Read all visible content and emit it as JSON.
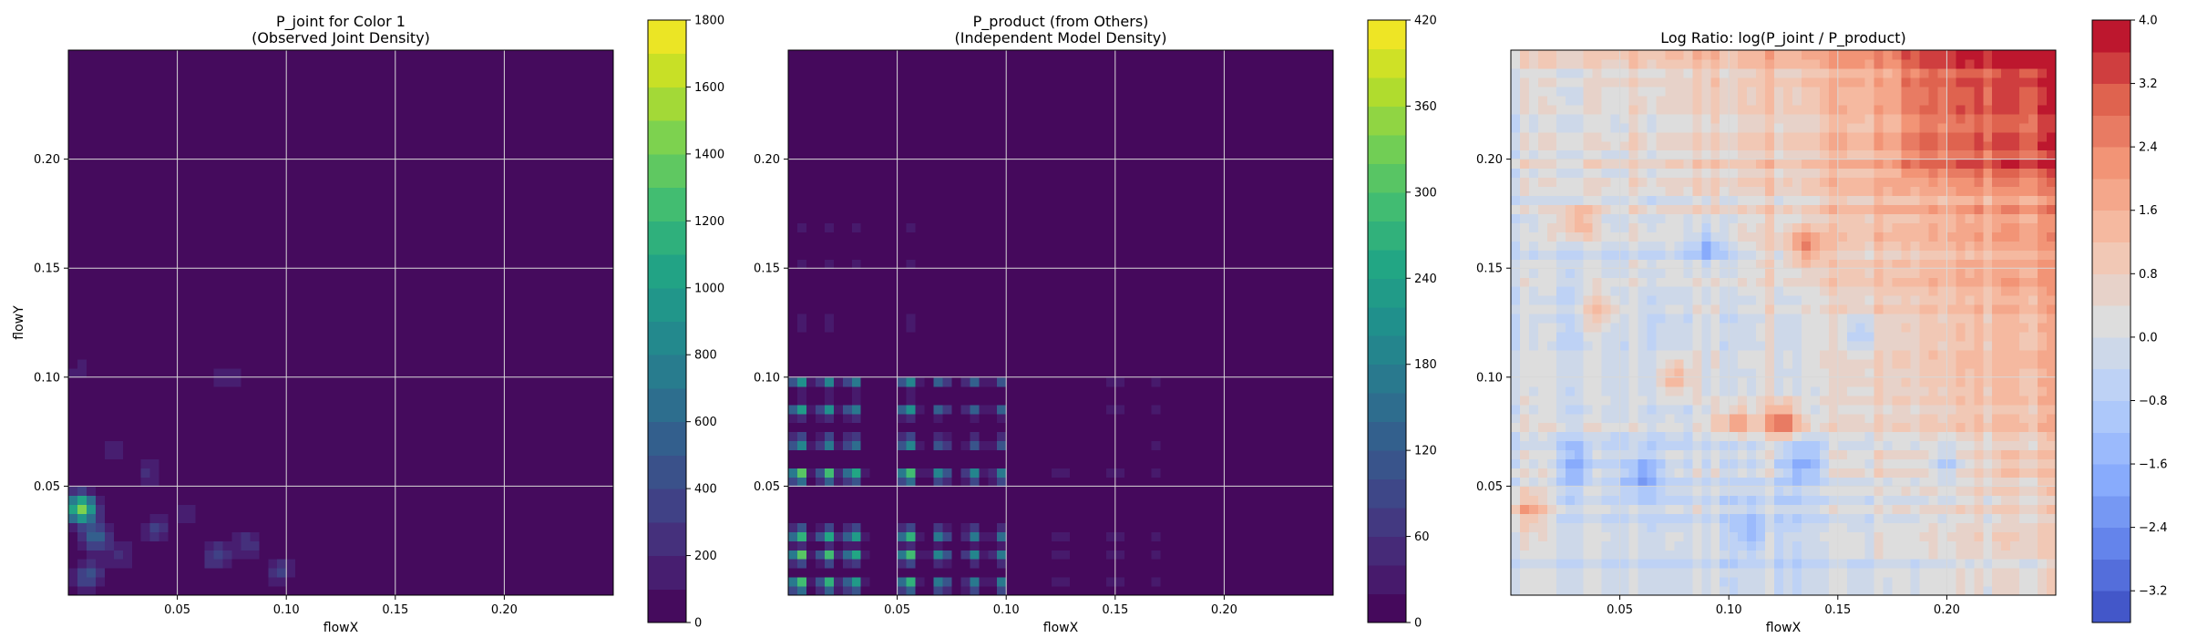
{
  "chart_data": [
    {
      "type": "heatmap",
      "title": "P_joint for Color 1\n(Observed Joint Density)",
      "xlabel": "flowX",
      "ylabel": "flowY",
      "xlim": [
        0.0,
        0.25
      ],
      "ylim": [
        0.0,
        0.25
      ],
      "xticks": [
        0.05,
        0.1,
        0.15,
        0.2
      ],
      "yticks": [
        0.05,
        0.1,
        0.15,
        0.2
      ],
      "xtick_labels": [
        "0.05",
        "0.10",
        "0.15",
        "0.20"
      ],
      "ytick_labels": [
        "0.05",
        "0.10",
        "0.15",
        "0.20"
      ],
      "grid": true,
      "colormap": "viridis",
      "colorbar": {
        "min": 0,
        "max": 1800,
        "ticks": [
          0,
          200,
          400,
          600,
          800,
          1000,
          1200,
          1400,
          1600,
          1800
        ],
        "tick_labels": [
          "0",
          "200",
          "400",
          "600",
          "800",
          "1000",
          "1200",
          "1400",
          "1600",
          "1800"
        ],
        "levels": 18
      },
      "hotspots": [
        {
          "x": 0.006,
          "y": 0.04,
          "value": 1500
        },
        {
          "x": 0.013,
          "y": 0.027,
          "value": 600
        },
        {
          "x": 0.009,
          "y": 0.009,
          "value": 450
        },
        {
          "x": 0.024,
          "y": 0.018,
          "value": 250
        },
        {
          "x": 0.04,
          "y": 0.03,
          "value": 320
        },
        {
          "x": 0.068,
          "y": 0.018,
          "value": 380
        },
        {
          "x": 0.082,
          "y": 0.024,
          "value": 300
        },
        {
          "x": 0.097,
          "y": 0.011,
          "value": 320
        },
        {
          "x": 0.074,
          "y": 0.1,
          "value": 220
        },
        {
          "x": 0.037,
          "y": 0.057,
          "value": 220
        },
        {
          "x": 0.055,
          "y": 0.038,
          "value": 200
        },
        {
          "x": 0.005,
          "y": 0.103,
          "value": 150
        },
        {
          "x": 0.022,
          "y": 0.066,
          "value": 160
        }
      ]
    },
    {
      "type": "heatmap",
      "title": "P_product (from Others)\n(Independent Model Density)",
      "xlabel": "flowX",
      "ylabel": "",
      "xlim": [
        0.0,
        0.25
      ],
      "ylim": [
        0.0,
        0.25
      ],
      "xticks": [
        0.05,
        0.1,
        0.15,
        0.2
      ],
      "yticks": [
        0.05,
        0.1,
        0.15,
        0.2
      ],
      "xtick_labels": [
        "0.05",
        "0.10",
        "0.15",
        "0.20"
      ],
      "ytick_labels": [
        "0.05",
        "0.10",
        "0.15",
        "0.20"
      ],
      "grid": true,
      "colormap": "viridis",
      "colorbar": {
        "min": 0,
        "max": 420,
        "ticks": [
          0,
          60,
          120,
          180,
          240,
          300,
          360,
          420
        ],
        "tick_labels": [
          "0",
          "60",
          "120",
          "180",
          "240",
          "300",
          "360",
          "420"
        ],
        "levels": 21
      },
      "x_band_peaks": [
        {
          "x": 0.005,
          "weight": 1.0
        },
        {
          "x": 0.018,
          "weight": 0.85
        },
        {
          "x": 0.03,
          "weight": 0.8
        },
        {
          "x": 0.055,
          "weight": 0.95
        },
        {
          "x": 0.07,
          "weight": 0.6
        },
        {
          "x": 0.085,
          "weight": 0.55
        },
        {
          "x": 0.098,
          "weight": 0.5
        },
        {
          "x": 0.125,
          "weight": 0.3
        },
        {
          "x": 0.15,
          "weight": 0.35
        },
        {
          "x": 0.168,
          "weight": 0.3
        }
      ],
      "y_band_peaks": [
        {
          "y": 0.005,
          "weight": 0.9
        },
        {
          "y": 0.018,
          "weight": 0.85
        },
        {
          "y": 0.028,
          "weight": 0.8
        },
        {
          "y": 0.055,
          "weight": 0.95
        },
        {
          "y": 0.07,
          "weight": 0.6
        },
        {
          "y": 0.085,
          "weight": 0.6
        },
        {
          "y": 0.098,
          "weight": 0.55
        },
        {
          "y": 0.125,
          "weight": 0.3
        },
        {
          "y": 0.152,
          "weight": 0.25
        },
        {
          "y": 0.168,
          "weight": 0.25
        }
      ]
    },
    {
      "type": "heatmap",
      "title": "Log Ratio: log(P_joint / P_product)",
      "xlabel": "flowX",
      "ylabel": "",
      "xlim": [
        0.0,
        0.25
      ],
      "ylim": [
        0.0,
        0.25
      ],
      "xticks": [
        0.05,
        0.1,
        0.15,
        0.2
      ],
      "yticks": [
        0.05,
        0.1,
        0.15,
        0.2
      ],
      "xtick_labels": [
        "0.05",
        "0.10",
        "0.15",
        "0.20"
      ],
      "ytick_labels": [
        "0.05",
        "0.10",
        "0.15",
        "0.20"
      ],
      "grid": true,
      "colormap": "coolwarm",
      "colorbar": {
        "min": -3.6,
        "max": 4.0,
        "ticks": [
          -3.2,
          -2.4,
          -1.6,
          -0.8,
          0.0,
          0.8,
          1.6,
          2.4,
          3.2,
          4.0
        ],
        "tick_labels": [
          "−3.2",
          "−2.4",
          "−1.6",
          "−0.8",
          "0.0",
          "0.8",
          "1.6",
          "2.4",
          "3.2",
          "4.0"
        ],
        "levels": 19
      },
      "hotspots": [
        {
          "x": 0.125,
          "y": 0.08,
          "value": 3.0
        },
        {
          "x": 0.103,
          "y": 0.08,
          "value": 2.0
        },
        {
          "x": 0.135,
          "y": 0.16,
          "value": 2.0
        },
        {
          "x": 0.03,
          "y": 0.172,
          "value": 1.8
        },
        {
          "x": 0.041,
          "y": 0.13,
          "value": 1.4
        },
        {
          "x": 0.008,
          "y": 0.04,
          "value": 1.6
        },
        {
          "x": 0.076,
          "y": 0.1,
          "value": 1.5
        },
        {
          "x": 0.06,
          "y": 0.055,
          "value": -2.0
        },
        {
          "x": 0.03,
          "y": 0.06,
          "value": -1.5
        },
        {
          "x": 0.09,
          "y": 0.16,
          "value": -1.8
        },
        {
          "x": 0.135,
          "y": 0.06,
          "value": -1.5
        },
        {
          "x": 0.16,
          "y": 0.12,
          "value": -1.2
        },
        {
          "x": 0.2,
          "y": 0.06,
          "value": -1.3
        },
        {
          "x": 0.11,
          "y": 0.03,
          "value": -1.2
        }
      ]
    }
  ]
}
